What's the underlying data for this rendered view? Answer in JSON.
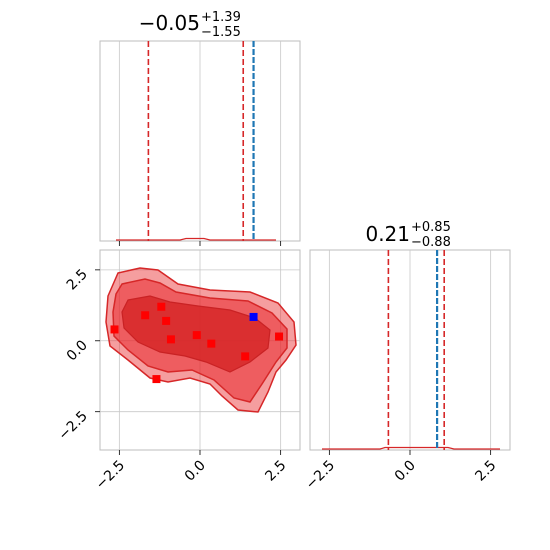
{
  "chart_data": [
    {
      "type": "line",
      "panel": "marginal-x",
      "title": {
        "value": "−0.05",
        "plus": "+1.39",
        "minus": "−1.55"
      },
      "quantiles": [
        -1.6,
        1.34
      ],
      "truth": 1.66,
      "xlim": [
        -3.1,
        3.1
      ],
      "grid": true,
      "xtick_labels_shown": false,
      "ytick_labels_shown": false
    },
    {
      "type": "line",
      "panel": "marginal-y",
      "title": {
        "value": "0.21",
        "plus": "+0.85",
        "minus": "−0.88"
      },
      "quantiles": [
        -0.67,
        1.06
      ],
      "truth": 0.84,
      "xlim": [
        -3.1,
        3.1
      ],
      "xticks": [
        -2.5,
        0.0,
        2.5
      ],
      "xtick_labels": [
        "−2.5",
        "0.0",
        "2.5"
      ],
      "grid": true
    },
    {
      "type": "scatter",
      "panel": "joint",
      "xlim": [
        -3.1,
        3.1
      ],
      "ylim": [
        -3.85,
        3.2
      ],
      "xticks": [
        -2.5,
        0.0,
        2.5
      ],
      "yticks": [
        -2.5,
        0.0,
        2.5
      ],
      "xtick_labels": [
        "−2.5",
        "0.0",
        "2.5"
      ],
      "ytick_labels": [
        "−2.5",
        "0.0",
        "2.5"
      ],
      "grid": true,
      "colors": {
        "contour_fill": "#e8282b",
        "contour_line": "#d62728",
        "points": "#ff0000",
        "truth": "#0000ff",
        "truth_line": "#1f77b4"
      },
      "points": [
        {
          "x": -2.65,
          "y": 0.4
        },
        {
          "x": -1.7,
          "y": 0.9
        },
        {
          "x": -1.2,
          "y": 1.2
        },
        {
          "x": -1.05,
          "y": 0.7
        },
        {
          "x": -0.9,
          "y": 0.05
        },
        {
          "x": -0.1,
          "y": 0.2
        },
        {
          "x": 0.35,
          "y": -0.1
        },
        {
          "x": 1.4,
          "y": -0.55
        },
        {
          "x": 2.45,
          "y": 0.15
        },
        {
          "x": -1.35,
          "y": -1.35
        }
      ],
      "truth_point": {
        "x": 1.66,
        "y": 0.84
      }
    }
  ]
}
